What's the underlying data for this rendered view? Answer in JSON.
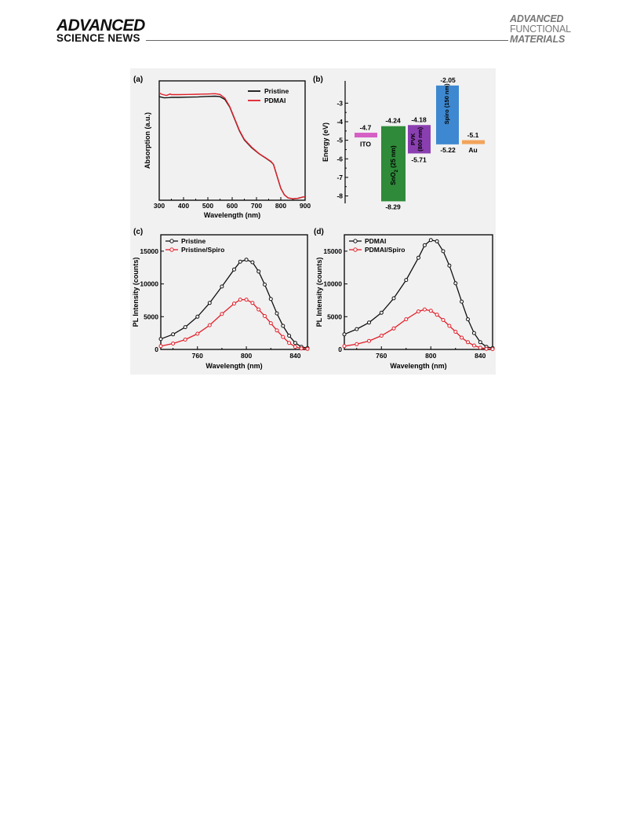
{
  "journal": {
    "left_line1": "ADVANCED",
    "left_line2": "SCIENCE NEWS",
    "right_line1": "ADVANCED",
    "right_line2": "FUNCTIONAL",
    "right_line3": "MATERIALS"
  },
  "colors": {
    "black_series": "#111111",
    "red_series": "#e0202a",
    "ito": "#d55fc4",
    "sno2": "#2f8a3a",
    "pvk": "#8a3fb0",
    "spiro": "#3d88d0",
    "au": "#f2a35a"
  },
  "chart_data": [
    {
      "panel_label": "(a)",
      "type": "line",
      "xlabel": "Wavelength (nm)",
      "ylabel": "Absorption (a.u.)",
      "xlim": [
        300,
        900
      ],
      "x_ticks": [
        "300",
        "400",
        "500",
        "600",
        "700",
        "800",
        "900"
      ],
      "legend_position": "top-right",
      "series": [
        {
          "name": "Pristine",
          "color": "#111111",
          "points": [
            [
              300,
              0.868
            ],
            [
              320,
              0.858
            ],
            [
              340,
              0.86
            ],
            [
              350,
              0.862
            ],
            [
              380,
              0.862
            ],
            [
              420,
              0.864
            ],
            [
              460,
              0.866
            ],
            [
              500,
              0.87
            ],
            [
              530,
              0.872
            ],
            [
              550,
              0.868
            ],
            [
              570,
              0.845
            ],
            [
              590,
              0.78
            ],
            [
              610,
              0.68
            ],
            [
              630,
              0.58
            ],
            [
              650,
              0.505
            ],
            [
              680,
              0.44
            ],
            [
              710,
              0.39
            ],
            [
              740,
              0.35
            ],
            [
              760,
              0.322
            ],
            [
              770,
              0.3
            ],
            [
              785,
              0.2
            ],
            [
              800,
              0.1
            ],
            [
              815,
              0.045
            ],
            [
              830,
              0.02
            ],
            [
              850,
              0.012
            ],
            [
              870,
              0.016
            ],
            [
              890,
              0.026
            ],
            [
              900,
              0.03
            ]
          ]
        },
        {
          "name": "PDMAI",
          "color": "#e0202a",
          "points": [
            [
              300,
              0.9
            ],
            [
              310,
              0.888
            ],
            [
              330,
              0.878
            ],
            [
              345,
              0.89
            ],
            [
              350,
              0.885
            ],
            [
              380,
              0.885
            ],
            [
              420,
              0.886
            ],
            [
              460,
              0.888
            ],
            [
              500,
              0.89
            ],
            [
              530,
              0.893
            ],
            [
              550,
              0.886
            ],
            [
              570,
              0.855
            ],
            [
              590,
              0.785
            ],
            [
              610,
              0.685
            ],
            [
              630,
              0.585
            ],
            [
              650,
              0.51
            ],
            [
              680,
              0.445
            ],
            [
              710,
              0.392
            ],
            [
              740,
              0.352
            ],
            [
              760,
              0.325
            ],
            [
              770,
              0.3
            ],
            [
              785,
              0.2
            ],
            [
              800,
              0.1
            ],
            [
              815,
              0.045
            ],
            [
              830,
              0.02
            ],
            [
              850,
              0.012
            ],
            [
              870,
              0.016
            ],
            [
              890,
              0.026
            ],
            [
              900,
              0.03
            ]
          ]
        }
      ]
    },
    {
      "panel_label": "(b)",
      "type": "bar",
      "ylabel": "Energy (eV)",
      "ylim": [
        -8.4,
        -1.8
      ],
      "y_ticks": [
        "-3",
        "-4",
        "-5",
        "-6",
        "-7",
        "-8"
      ],
      "levels": [
        {
          "name": "ITO",
          "top": -4.7,
          "bottom": -4.7,
          "top_label": "-4.7",
          "bottom_label": "",
          "color": "#d55fc4"
        },
        {
          "name": "SnO2 (25 nm)",
          "top": -4.24,
          "bottom": -8.29,
          "top_label": "-4.24",
          "bottom_label": "-8.29",
          "color": "#2f8a3a"
        },
        {
          "name": "PVK (800 nm)",
          "top": -4.18,
          "bottom": -5.71,
          "top_label": "-4.18",
          "bottom_label": "-5.71",
          "color": "#8a3fb0"
        },
        {
          "name": "Spiro (150 nm)",
          "top": -2.05,
          "bottom": -5.22,
          "top_label": "-2.05",
          "bottom_label": "-5.22",
          "color": "#3d88d0"
        },
        {
          "name": "Au",
          "top": -5.1,
          "bottom": -5.1,
          "top_label": "-5.1",
          "bottom_label": "",
          "color": "#f2a35a"
        }
      ],
      "texts": {
        "ito": "ITO",
        "sno2_a": "SnO",
        "sno2_sub": "2",
        "sno2_b": " (25 nm)",
        "pvk_1": "PVK",
        "pvk_2": "(800 nm)",
        "spiro": "Spiro (150 nm)",
        "au": "Au"
      }
    },
    {
      "panel_label": "(c)",
      "type": "line",
      "xlabel": "Wavelength (nm)",
      "ylabel": "PL Intensity (counts)",
      "xlim": [
        730,
        850
      ],
      "ylim": [
        0,
        17500
      ],
      "x_ticks": [
        "760",
        "800",
        "840"
      ],
      "y_ticks": [
        "0",
        "5000",
        "10000",
        "15000"
      ],
      "legend_position": "top-left",
      "series": [
        {
          "name": "Pristine",
          "color": "#111111",
          "points": [
            [
              730,
              1600
            ],
            [
              740,
              2300
            ],
            [
              750,
              3400
            ],
            [
              760,
              5000
            ],
            [
              770,
              7100
            ],
            [
              780,
              9600
            ],
            [
              790,
              12200
            ],
            [
              795,
              13400
            ],
            [
              800,
              13700
            ],
            [
              805,
              13300
            ],
            [
              810,
              11900
            ],
            [
              815,
              9900
            ],
            [
              820,
              7700
            ],
            [
              825,
              5500
            ],
            [
              830,
              3600
            ],
            [
              835,
              2100
            ],
            [
              840,
              1000
            ],
            [
              845,
              400
            ],
            [
              850,
              200
            ]
          ]
        },
        {
          "name": "Pristine/Spiro",
          "color": "#e0202a",
          "points": [
            [
              730,
              500
            ],
            [
              740,
              900
            ],
            [
              750,
              1500
            ],
            [
              760,
              2400
            ],
            [
              770,
              3700
            ],
            [
              780,
              5400
            ],
            [
              790,
              7000
            ],
            [
              795,
              7600
            ],
            [
              800,
              7600
            ],
            [
              805,
              7100
            ],
            [
              810,
              6100
            ],
            [
              815,
              5100
            ],
            [
              820,
              4000
            ],
            [
              825,
              2900
            ],
            [
              830,
              1900
            ],
            [
              835,
              1000
            ],
            [
              840,
              400
            ],
            [
              845,
              150
            ],
            [
              850,
              80
            ]
          ]
        }
      ]
    },
    {
      "panel_label": "(d)",
      "type": "line",
      "xlabel": "Wavelength (nm)",
      "ylabel": "PL Intensity (counts)",
      "xlim": [
        730,
        850
      ],
      "ylim": [
        0,
        17500
      ],
      "x_ticks": [
        "760",
        "800",
        "840"
      ],
      "y_ticks": [
        "0",
        "5000",
        "10000",
        "15000"
      ],
      "legend_position": "top-left",
      "series": [
        {
          "name": "PDMAI",
          "color": "#111111",
          "points": [
            [
              730,
              2300
            ],
            [
              740,
              3100
            ],
            [
              750,
              4100
            ],
            [
              760,
              5600
            ],
            [
              770,
              7800
            ],
            [
              780,
              10600
            ],
            [
              790,
              14000
            ],
            [
              795,
              15900
            ],
            [
              800,
              16700
            ],
            [
              805,
              16500
            ],
            [
              810,
              15000
            ],
            [
              815,
              12800
            ],
            [
              820,
              10100
            ],
            [
              825,
              7300
            ],
            [
              830,
              4600
            ],
            [
              835,
              2500
            ],
            [
              840,
              1100
            ],
            [
              845,
              400
            ],
            [
              850,
              200
            ]
          ]
        },
        {
          "name": "PDMAI/Spiro",
          "color": "#e0202a",
          "points": [
            [
              730,
              500
            ],
            [
              740,
              800
            ],
            [
              750,
              1300
            ],
            [
              760,
              2100
            ],
            [
              770,
              3200
            ],
            [
              780,
              4600
            ],
            [
              790,
              5800
            ],
            [
              795,
              6100
            ],
            [
              800,
              5900
            ],
            [
              805,
              5300
            ],
            [
              810,
              4500
            ],
            [
              815,
              3600
            ],
            [
              820,
              2700
            ],
            [
              825,
              1800
            ],
            [
              830,
              1100
            ],
            [
              835,
              600
            ],
            [
              840,
              250
            ],
            [
              845,
              100
            ],
            [
              850,
              50
            ]
          ]
        }
      ]
    }
  ]
}
